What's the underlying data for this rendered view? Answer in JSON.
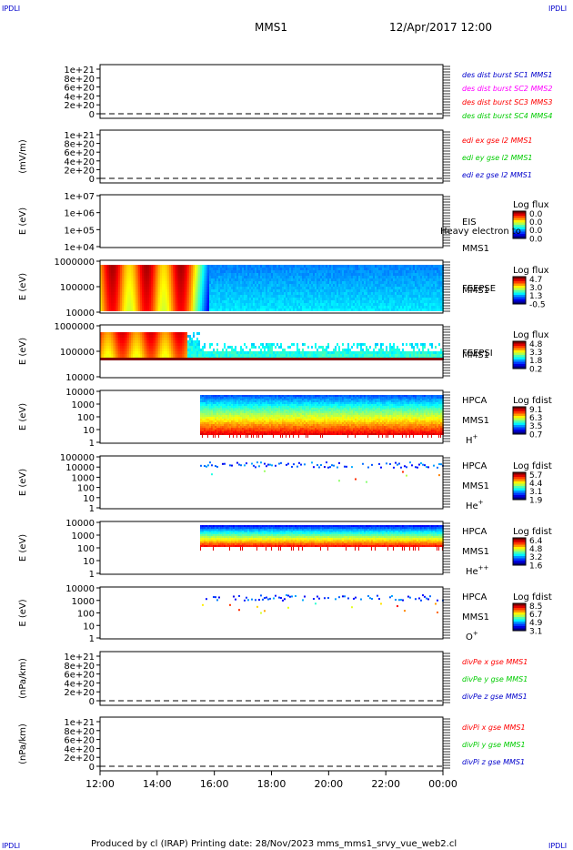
{
  "corner_label": "IPDLI",
  "header": {
    "title": "MMS1",
    "date": "12/Apr/2017 12:00"
  },
  "footer": {
    "text": "Produced by cl (IRAP)   Printing date: 28/Nov/2023   mms_mms1_srvy_vue_web2.cl"
  },
  "colors": {
    "red": "#ff0000",
    "green": "#00cc00",
    "blue": "#0000cc",
    "magenta": "#ff00ff"
  },
  "chart_data": {
    "type": "heatmap",
    "x_tick_labels": [
      "12:00",
      "14:00",
      "16:00",
      "18:00",
      "20:00",
      "22:00",
      "00:00"
    ],
    "xlim_hours": [
      12,
      24
    ],
    "panels": [
      {
        "id": "des-dist",
        "type": "line",
        "ylabel": "",
        "ticks": [
          "1e+21",
          "8e+20",
          "6e+20",
          "4e+20",
          "2e+20",
          "0"
        ],
        "legend": [
          {
            "text": "des dist burst SC1 MMS1",
            "color": "#0000cc"
          },
          {
            "text": "des dist burst SC2 MMS2",
            "color": "#ff00ff"
          },
          {
            "text": "des dist burst SC3 MMS3",
            "color": "#ff0000"
          },
          {
            "text": "des dist burst SC4 MMS4",
            "color": "#00cc00"
          }
        ]
      },
      {
        "id": "edi",
        "type": "line",
        "ylabel": "(mV/m)",
        "ticks": [
          "1e+21",
          "8e+20",
          "6e+20",
          "4e+20",
          "2e+20",
          "0"
        ],
        "legend": [
          {
            "text": "edi ex gse l2 MMS1",
            "color": "#ff0000"
          },
          {
            "text": "edi ey gse l2 MMS1",
            "color": "#00cc00"
          },
          {
            "text": "edi ez gse l2 MMS1",
            "color": "#0000cc"
          }
        ]
      },
      {
        "id": "eis",
        "type": "heatmap",
        "ylabel": "E (eV)",
        "ticks": [
          "1e+07",
          "1e+06",
          "1e+05",
          "1e+04"
        ],
        "labels": [
          "EIS",
          "MMS1"
        ],
        "overlay_text": "Heavy electron to",
        "cbar_title": "Log flux",
        "cbar_values": [
          "0.0",
          "0.0",
          "0.0",
          "0.0"
        ],
        "mode": "empty"
      },
      {
        "id": "feepse",
        "type": "heatmap",
        "ylabel": "E (eV)",
        "ticks": [
          "1000000",
          "100000",
          "10000"
        ],
        "labels": [
          "FEEPSE",
          "MMS1"
        ],
        "cbar_title": "Log flux",
        "cbar_values": [
          "4.7",
          "3.0",
          "1.3",
          "-0.5"
        ],
        "mode": "feeps_e"
      },
      {
        "id": "feepsi",
        "type": "heatmap",
        "ylabel": "E (eV)",
        "ticks": [
          "1000000",
          "100000",
          "10000"
        ],
        "labels": [
          "FEEPSI",
          "MMS1"
        ],
        "cbar_title": "Log flux",
        "cbar_values": [
          "4.8",
          "3.3",
          "1.8",
          "0.2"
        ],
        "mode": "feeps_i"
      },
      {
        "id": "hpca-h",
        "type": "heatmap",
        "ylabel": "E (eV)",
        "ticks": [
          "10000",
          "1000",
          "100",
          "10",
          "1"
        ],
        "labels": [
          "HPCA",
          "MMS1",
          "H+"
        ],
        "cbar_title": "Log fdist",
        "cbar_values": [
          "9.1",
          "6.3",
          "3.5",
          "0.7"
        ],
        "mode": "hpca_h"
      },
      {
        "id": "hpca-he",
        "type": "heatmap",
        "ylabel": "E (eV)",
        "ticks": [
          "100000",
          "10000",
          "1000",
          "100",
          "10",
          "1"
        ],
        "labels": [
          "HPCA",
          "MMS1",
          "He+"
        ],
        "cbar_title": "Log fdist",
        "cbar_values": [
          "5.7",
          "4.4",
          "3.1",
          "1.9"
        ],
        "mode": "sparse_top"
      },
      {
        "id": "hpca-hepp",
        "type": "heatmap",
        "ylabel": "E (eV)",
        "ticks": [
          "10000",
          "1000",
          "100",
          "10",
          "1"
        ],
        "labels": [
          "HPCA",
          "MMS1",
          "He++"
        ],
        "cbar_title": "Log fdist",
        "cbar_values": [
          "6.4",
          "4.8",
          "3.2",
          "1.6"
        ],
        "mode": "hpca_hepp"
      },
      {
        "id": "hpca-o",
        "type": "heatmap",
        "ylabel": "E (eV)",
        "ticks": [
          "10000",
          "1000",
          "100",
          "10",
          "1"
        ],
        "labels": [
          "HPCA",
          "MMS1",
          "O+"
        ],
        "cbar_title": "Log fdist",
        "cbar_values": [
          "8.5",
          "6.7",
          "4.9",
          "3.1"
        ],
        "mode": "sparse_mid"
      },
      {
        "id": "divpe",
        "type": "line",
        "ylabel": "(nPa/km)",
        "ticks": [
          "1e+21",
          "8e+20",
          "6e+20",
          "4e+20",
          "2e+20",
          "0"
        ],
        "legend": [
          {
            "text": "divPe x gse MMS1",
            "color": "#ff0000"
          },
          {
            "text": "divPe y gse MMS1",
            "color": "#00cc00"
          },
          {
            "text": "divPe z gse MMS1",
            "color": "#0000cc"
          }
        ]
      },
      {
        "id": "divpi",
        "type": "line",
        "ylabel": "(nPa/km)",
        "ticks": [
          "1e+21",
          "8e+20",
          "6e+20",
          "4e+20",
          "2e+20",
          "0"
        ],
        "legend": [
          {
            "text": "divPi x gse MMS1",
            "color": "#ff0000"
          },
          {
            "text": "divPi y gse MMS1",
            "color": "#00cc00"
          },
          {
            "text": "divPi z gse MMS1",
            "color": "#0000cc"
          }
        ]
      }
    ]
  }
}
